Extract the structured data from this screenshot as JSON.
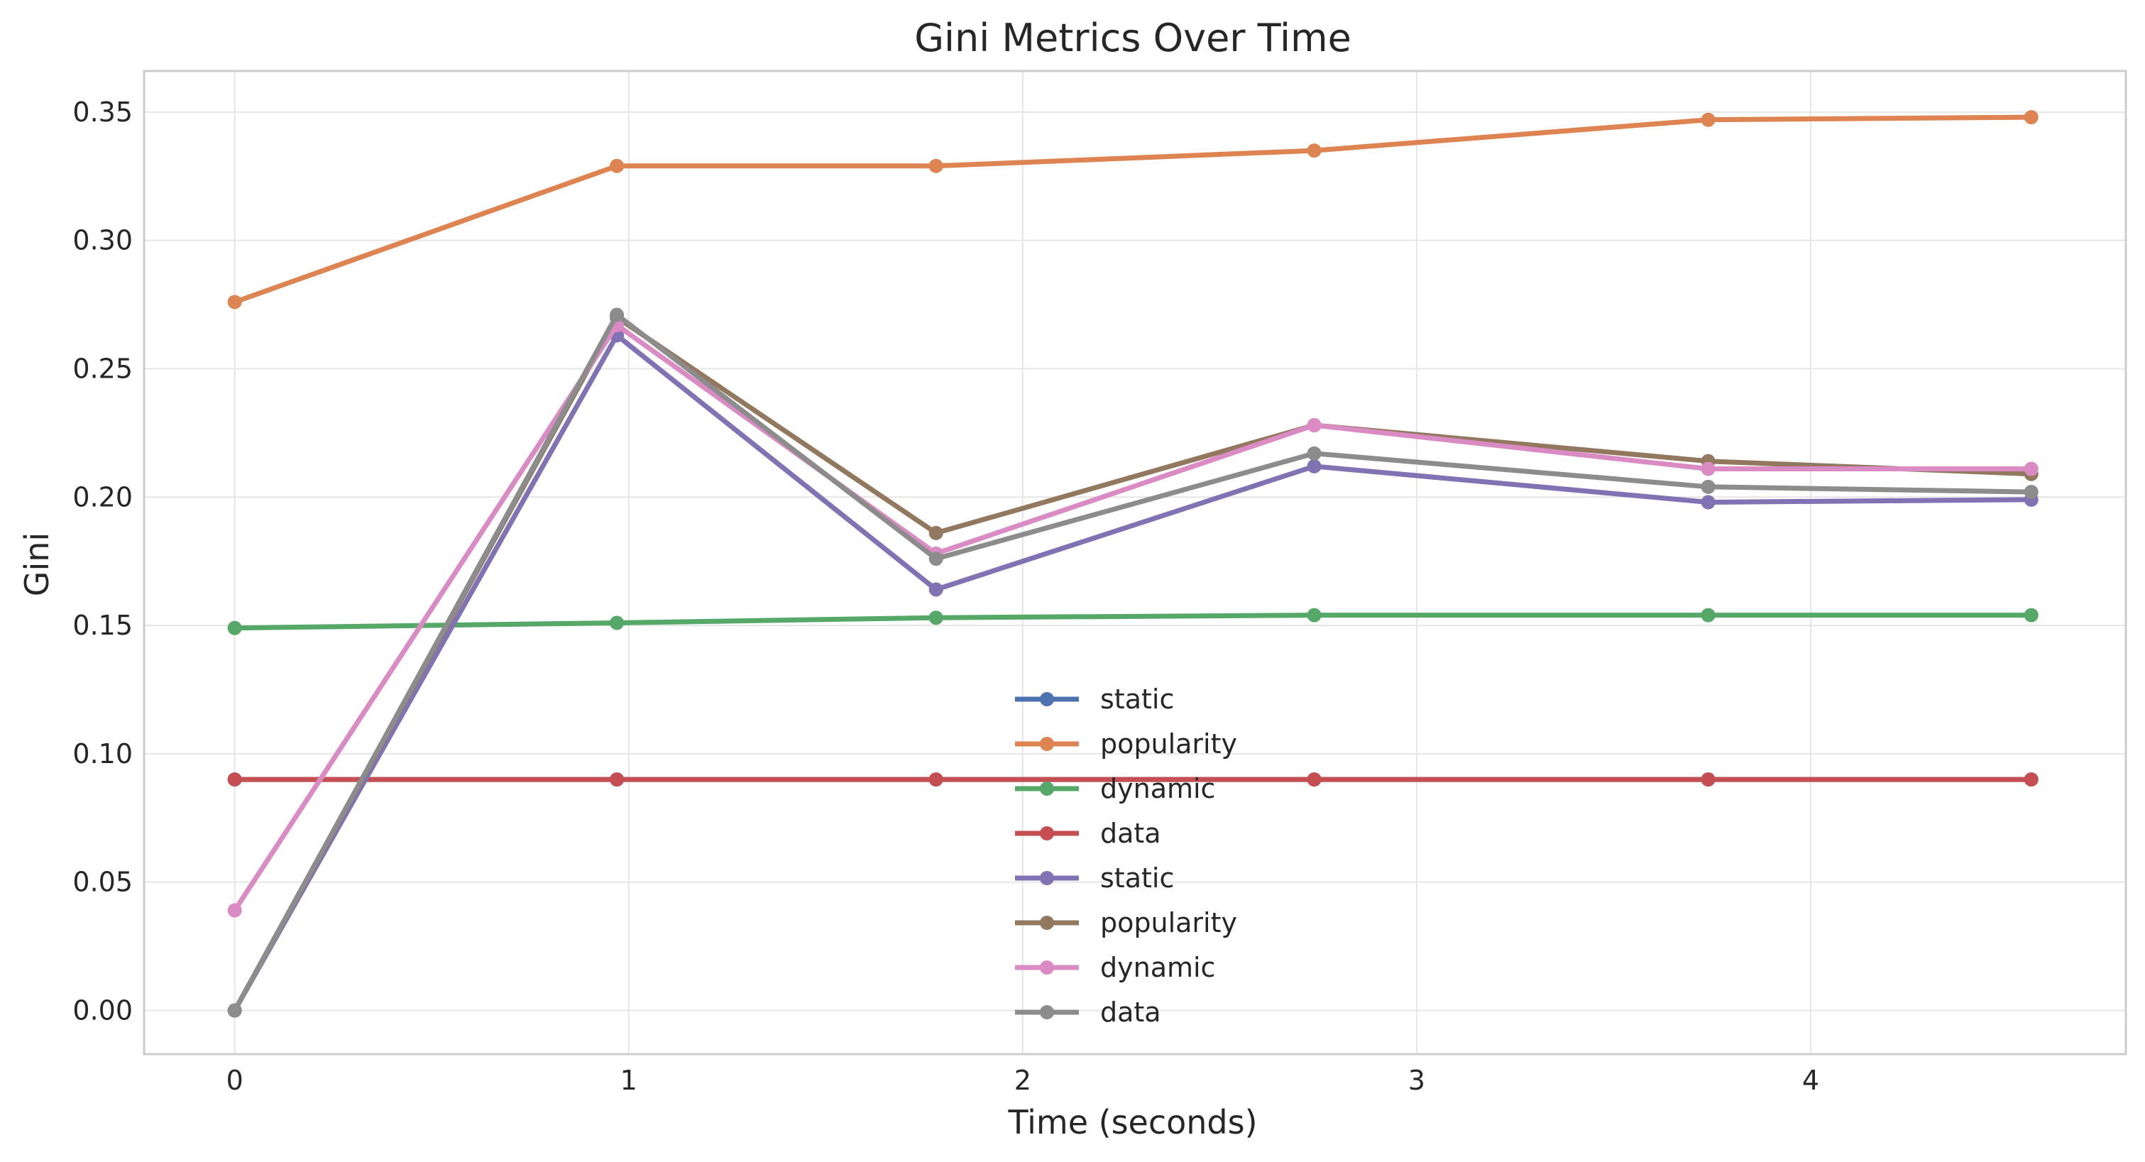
{
  "chart_data": {
    "type": "line",
    "title": "Gini Metrics Over Time",
    "xlabel": "Time (seconds)",
    "ylabel": "Gini",
    "xlim": [
      -0.23,
      4.8
    ],
    "ylim": [
      -0.017,
      0.366
    ],
    "x_ticks": [
      0,
      1,
      2,
      3,
      4
    ],
    "y_ticks": [
      0.0,
      0.05,
      0.1,
      0.15,
      0.2,
      0.25,
      0.3,
      0.35
    ],
    "grid": true,
    "legend_position": "bottom-center",
    "series": [
      {
        "name": "static",
        "color": "#4c72b0",
        "x": [
          0,
          0.97,
          1.78,
          2.74,
          3.74,
          4.56
        ],
        "y": [
          0.09,
          0.09,
          0.09,
          0.09,
          0.09,
          0.09
        ]
      },
      {
        "name": "popularity",
        "color": "#dd8452",
        "x": [
          0,
          0.97,
          1.78,
          2.74,
          3.74,
          4.56
        ],
        "y": [
          0.276,
          0.329,
          0.329,
          0.335,
          0.347,
          0.348
        ]
      },
      {
        "name": "dynamic",
        "color": "#55a868",
        "x": [
          0,
          0.97,
          1.78,
          2.74,
          3.74,
          4.56
        ],
        "y": [
          0.149,
          0.151,
          0.153,
          0.154,
          0.154,
          0.154
        ]
      },
      {
        "name": "data",
        "color": "#c44e52",
        "x": [
          0,
          0.97,
          1.78,
          2.74,
          3.74,
          4.56
        ],
        "y": [
          0.09,
          0.09,
          0.09,
          0.09,
          0.09,
          0.09
        ]
      },
      {
        "name": "static",
        "color": "#8172b3",
        "x": [
          0,
          0.97,
          1.78,
          2.74,
          3.74,
          4.56
        ],
        "y": [
          0.0,
          0.263,
          0.164,
          0.212,
          0.198,
          0.199
        ]
      },
      {
        "name": "popularity",
        "color": "#937860",
        "x": [
          0,
          0.97,
          1.78,
          2.74,
          3.74,
          4.56
        ],
        "y": [
          0.0,
          0.27,
          0.186,
          0.228,
          0.214,
          0.209
        ]
      },
      {
        "name": "dynamic",
        "color": "#da8bc3",
        "x": [
          0,
          0.97,
          1.78,
          2.74,
          3.74,
          4.56
        ],
        "y": [
          0.039,
          0.267,
          0.178,
          0.228,
          0.211,
          0.211
        ]
      },
      {
        "name": "data",
        "color": "#8c8c8c",
        "x": [
          0,
          0.97,
          1.78,
          2.74,
          3.74,
          4.56
        ],
        "y": [
          0.0,
          0.271,
          0.176,
          0.217,
          0.204,
          0.202
        ]
      }
    ]
  }
}
